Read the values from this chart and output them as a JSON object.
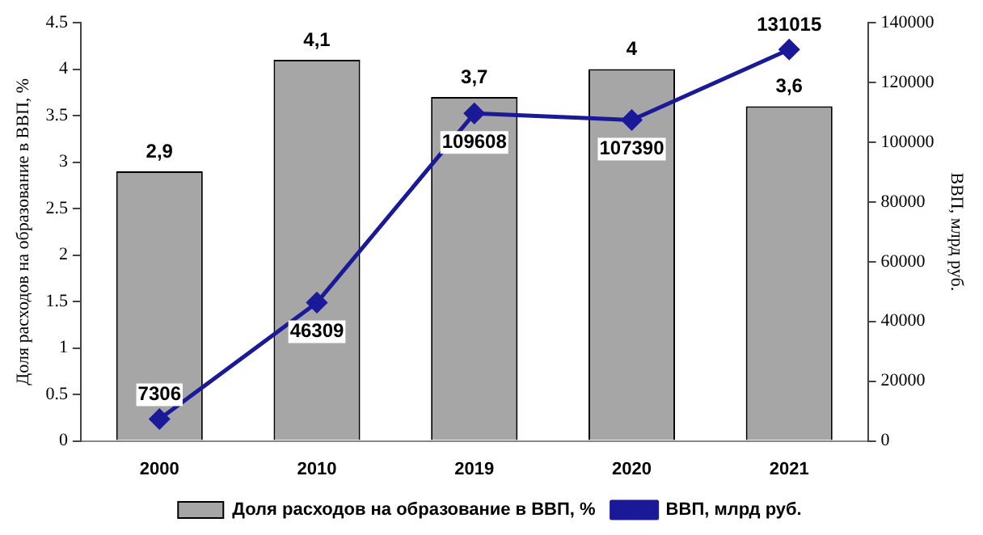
{
  "chart_data": {
    "type": "bar",
    "categories": [
      "2000",
      "2010",
      "2019",
      "2020",
      "2021"
    ],
    "series": [
      {
        "name": "Доля расходов на образование в ВВП, %",
        "color": "#a6a6a6",
        "values": [
          2.9,
          4.1,
          3.7,
          4,
          3.6
        ],
        "value_labels": [
          "2,9",
          "4,1",
          "3,7",
          "4",
          "3,6"
        ]
      },
      {
        "name": "ВВП, млрд руб.",
        "type": "line",
        "axis": "y2",
        "color": "#1a1a99",
        "values": [
          7306,
          46309,
          109608,
          107390,
          131015
        ],
        "value_labels": [
          "7306",
          "46309",
          "109608",
          "107390",
          "131015"
        ]
      }
    ],
    "ylabel": "Доля расходов на образование в ВВП, %",
    "y2label": "ВВП, млрд руб.",
    "ylim": [
      0,
      4.5
    ],
    "yticks": [
      0,
      0.5,
      1,
      1.5,
      2,
      2.5,
      3,
      3.5,
      4,
      4.5
    ],
    "y2lim": [
      0,
      140000
    ],
    "y2ticks": [
      0,
      20000,
      40000,
      60000,
      80000,
      100000,
      120000,
      140000
    ],
    "grid": false,
    "legend": "bottom",
    "marker": "diamond",
    "line_style": "solid"
  }
}
